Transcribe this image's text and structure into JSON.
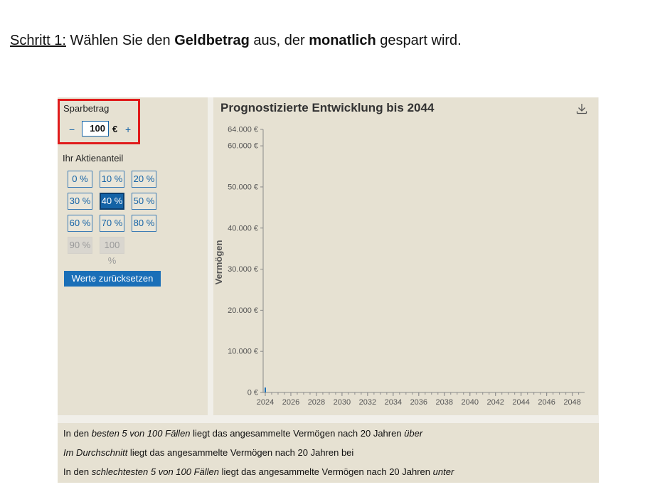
{
  "instruction": {
    "step_label": "Schritt 1:",
    "part1": " Wählen Sie den ",
    "bold1": "Geldbetrag",
    "part2": " aus, der ",
    "bold2": "monatlich",
    "part3": " gespart wird."
  },
  "left": {
    "sparbetrag_label": "Sparbetrag",
    "minus": "−",
    "amount": "100",
    "currency": "€",
    "plus": "+",
    "aktien_label": "Ihr Aktienanteil",
    "options": [
      {
        "label": "0 %",
        "state": "normal"
      },
      {
        "label": "10 %",
        "state": "normal"
      },
      {
        "label": "20 %",
        "state": "normal"
      },
      {
        "label": "30 %",
        "state": "normal"
      },
      {
        "label": "40 %",
        "state": "active"
      },
      {
        "label": "50 %",
        "state": "normal"
      },
      {
        "label": "60 %",
        "state": "normal"
      },
      {
        "label": "70 %",
        "state": "normal"
      },
      {
        "label": "80 %",
        "state": "normal"
      },
      {
        "label": "90 %",
        "state": "disabled"
      },
      {
        "label": "100 %",
        "state": "disabled"
      }
    ],
    "reset_label": "Werte zurücksetzen"
  },
  "chart_data": {
    "type": "line",
    "title": "Prognostizierte Entwicklung bis 2044",
    "ylabel": "Vermögen",
    "xlabel": "",
    "y_ticks": [
      "0 €",
      "10.000 €",
      "20.000 €",
      "30.000 €",
      "40.000 €",
      "50.000 €",
      "60.000 €",
      "64.000 €"
    ],
    "y_tick_values": [
      0,
      10000,
      20000,
      30000,
      40000,
      50000,
      60000,
      64000
    ],
    "ylim": [
      0,
      64000
    ],
    "x_ticks": [
      "2024",
      "2026",
      "2028",
      "2030",
      "2032",
      "2034",
      "2036",
      "2038",
      "2040",
      "2042",
      "2044",
      "2046",
      "2048"
    ],
    "x_tick_values": [
      2024,
      2026,
      2028,
      2030,
      2032,
      2034,
      2036,
      2038,
      2040,
      2042,
      2044,
      2046,
      2048
    ],
    "xlim": [
      2024,
      2048.8
    ],
    "series": [
      {
        "values": [
          [
            2024,
            1200
          ]
        ]
      }
    ],
    "grid": false,
    "series_color": "#1a6fb8"
  },
  "bottom": {
    "line1": [
      {
        "text": "In den ",
        "italic": false
      },
      {
        "text": "besten 5 von 100 Fällen",
        "italic": true
      },
      {
        "text": " liegt das angesammelte Vermögen nach 20 Jahren ",
        "italic": false
      },
      {
        "text": "über",
        "italic": true
      }
    ],
    "line2": [
      {
        "text": "Im Durchschnitt",
        "italic": true
      },
      {
        "text": " liegt das angesammelte Vermögen nach 20 Jahren bei",
        "italic": false
      }
    ],
    "line3": [
      {
        "text": "In den ",
        "italic": false
      },
      {
        "text": "schlechtesten 5 von 100 Fällen",
        "italic": true
      },
      {
        "text": " liegt das angesammelte Vermögen nach 20 Jahren ",
        "italic": false
      },
      {
        "text": "unter",
        "italic": true
      }
    ]
  },
  "colors": {
    "accent": "#1463a6",
    "highlight": "#e01b1b",
    "panel": "#e6e1d2"
  }
}
